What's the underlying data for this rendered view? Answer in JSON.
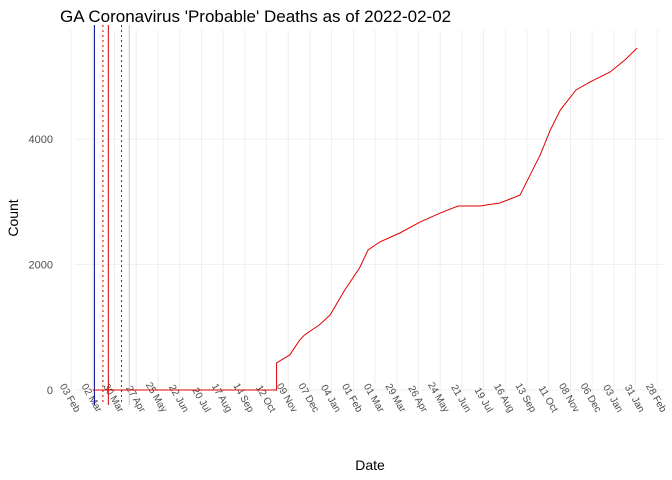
{
  "chart_data": {
    "type": "line",
    "title": "GA Coronavirus 'Probable' Deaths as of 2022-02-02",
    "x_label": "Date",
    "y_label": "Count",
    "xlim": [
      7,
      768
    ],
    "ylim": [
      -240,
      5740
    ],
    "yticks": [
      0,
      2000,
      4000
    ],
    "xticks": [
      {
        "value": 2,
        "label": "03 Feb"
      },
      {
        "value": 30,
        "label": "02 Mar"
      },
      {
        "value": 58,
        "label": "30 Mar"
      },
      {
        "value": 86,
        "label": "27 Apr"
      },
      {
        "value": 114,
        "label": "25 May"
      },
      {
        "value": 142,
        "label": "22 Jun"
      },
      {
        "value": 170,
        "label": "20 Jul"
      },
      {
        "value": 198,
        "label": "17 Aug"
      },
      {
        "value": 226,
        "label": "14 Sep"
      },
      {
        "value": 254,
        "label": "12 Oct"
      },
      {
        "value": 282,
        "label": "09 Nov"
      },
      {
        "value": 310,
        "label": "07 Dec"
      },
      {
        "value": 338,
        "label": "04 Jan"
      },
      {
        "value": 366,
        "label": "01 Feb"
      },
      {
        "value": 394,
        "label": "01 Mar"
      },
      {
        "value": 422,
        "label": "29 Mar"
      },
      {
        "value": 450,
        "label": "26 Apr"
      },
      {
        "value": 478,
        "label": "24 May"
      },
      {
        "value": 506,
        "label": "21 Jun"
      },
      {
        "value": 534,
        "label": "19 Jul"
      },
      {
        "value": 562,
        "label": "16 Aug"
      },
      {
        "value": 590,
        "label": "13 Sep"
      },
      {
        "value": 618,
        "label": "11 Oct"
      },
      {
        "value": 646,
        "label": "08 Nov"
      },
      {
        "value": 674,
        "label": "06 Dec"
      },
      {
        "value": 702,
        "label": "03 Jan"
      },
      {
        "value": 730,
        "label": "31 Jan"
      },
      {
        "value": 758,
        "label": "28 Feb"
      }
    ],
    "grid": true,
    "vlines": [
      {
        "x": 32,
        "color": "#00008b",
        "dash": false
      },
      {
        "x": 43,
        "color": "#cc0000",
        "dash": true
      },
      {
        "x": 50,
        "color": "#cc0000",
        "dash": false
      },
      {
        "x": 67,
        "color": "#cc0000",
        "dash": true
      },
      {
        "x": 77,
        "color": "#d8b4e2",
        "dash": false
      }
    ],
    "series": [
      {
        "color": "#e00000",
        "x": [
          30,
          267,
          267,
          269,
          284,
          297,
          303,
          322,
          336,
          355,
          374,
          385,
          400,
          426,
          452,
          478,
          501,
          529,
          555,
          581,
          594,
          607,
          620,
          633,
          653,
          671,
          697,
          716,
          732
        ],
        "values": [
          0,
          0,
          430,
          446,
          558,
          797,
          877,
          1036,
          1195,
          1594,
          1945,
          2232,
          2359,
          2503,
          2678,
          2821,
          2933,
          2933,
          2981,
          3108,
          3427,
          3746,
          4144,
          4463,
          4782,
          4910,
          5069,
          5260,
          5451
        ]
      }
    ]
  }
}
